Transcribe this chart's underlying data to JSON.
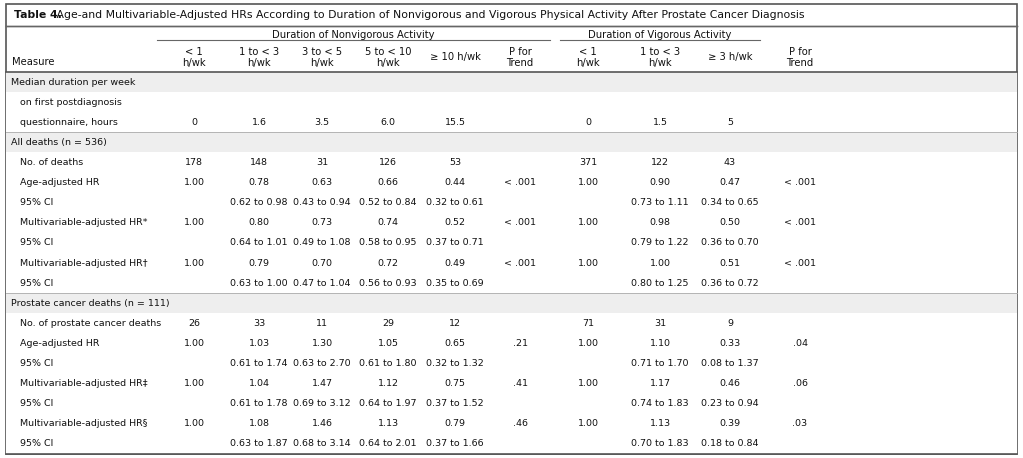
{
  "title_bold": "Table 4.",
  "title_rest": " Age-and Multivariable-Adjusted HRs According to Duration of Nonvigorous and Vigorous Physical Activity After Prostate Cancer Diagnosis",
  "col_group1_label": "Duration of Nonvigorous Activity",
  "col_group2_label": "Duration of Vigorous Activity",
  "subheaders_line1": [
    "< 1",
    "1 to < 3",
    "3 to < 5",
    "5 to < 10",
    "",
    "P for",
    "< 1",
    "1 to < 3",
    "",
    "P for"
  ],
  "subheaders_line2": [
    "h/wk",
    "h/wk",
    "h/wk",
    "h/wk",
    "≥ 10 h/wk",
    "Trend",
    "h/wk",
    "h/wk",
    "≥ 3 h/wk",
    "Trend"
  ],
  "measure_label": "Measure",
  "rows": [
    {
      "label": "Median duration per week",
      "section": true,
      "values": [
        "",
        "",
        "",
        "",
        "",
        "",
        "",
        "",
        "",
        ""
      ]
    },
    {
      "label": "   on first postdiagnosis",
      "section": false,
      "values": [
        "",
        "",
        "",
        "",
        "",
        "",
        "",
        "",
        "",
        ""
      ]
    },
    {
      "label": "   questionnaire, hours",
      "section": false,
      "values": [
        "0",
        "1.6",
        "3.5",
        "6.0",
        "15.5",
        "",
        "0",
        "1.5",
        "5",
        ""
      ]
    },
    {
      "label": "All deaths (n = 536)",
      "section": true,
      "values": [
        "",
        "",
        "",
        "",
        "",
        "",
        "",
        "",
        "",
        ""
      ]
    },
    {
      "label": "   No. of deaths",
      "section": false,
      "values": [
        "178",
        "148",
        "31",
        "126",
        "53",
        "",
        "371",
        "122",
        "43",
        ""
      ]
    },
    {
      "label": "   Age-adjusted HR",
      "section": false,
      "values": [
        "1.00",
        "0.78",
        "0.63",
        "0.66",
        "0.44",
        "< .001",
        "1.00",
        "0.90",
        "0.47",
        "< .001"
      ]
    },
    {
      "label": "   95% CI",
      "section": false,
      "values": [
        "",
        "0.62 to 0.98",
        "0.43 to 0.94",
        "0.52 to 0.84",
        "0.32 to 0.61",
        "",
        "",
        "0.73 to 1.11",
        "0.34 to 0.65",
        ""
      ]
    },
    {
      "label": "   Multivariable-adjusted HR*",
      "section": false,
      "values": [
        "1.00",
        "0.80",
        "0.73",
        "0.74",
        "0.52",
        "< .001",
        "1.00",
        "0.98",
        "0.50",
        "< .001"
      ]
    },
    {
      "label": "   95% CI",
      "section": false,
      "values": [
        "",
        "0.64 to 1.01",
        "0.49 to 1.08",
        "0.58 to 0.95",
        "0.37 to 0.71",
        "",
        "",
        "0.79 to 1.22",
        "0.36 to 0.70",
        ""
      ]
    },
    {
      "label": "   Multivariable-adjusted HR†",
      "section": false,
      "values": [
        "1.00",
        "0.79",
        "0.70",
        "0.72",
        "0.49",
        "< .001",
        "1.00",
        "1.00",
        "0.51",
        "< .001"
      ]
    },
    {
      "label": "   95% CI",
      "section": false,
      "values": [
        "",
        "0.63 to 1.00",
        "0.47 to 1.04",
        "0.56 to 0.93",
        "0.35 to 0.69",
        "",
        "",
        "0.80 to 1.25",
        "0.36 to 0.72",
        ""
      ]
    },
    {
      "label": "Prostate cancer deaths (n = 111)",
      "section": true,
      "values": [
        "",
        "",
        "",
        "",
        "",
        "",
        "",
        "",
        "",
        ""
      ]
    },
    {
      "label": "   No. of prostate cancer deaths",
      "section": false,
      "values": [
        "26",
        "33",
        "11",
        "29",
        "12",
        "",
        "71",
        "31",
        "9",
        ""
      ]
    },
    {
      "label": "   Age-adjusted HR",
      "section": false,
      "values": [
        "1.00",
        "1.03",
        "1.30",
        "1.05",
        "0.65",
        ".21",
        "1.00",
        "1.10",
        "0.33",
        ".04"
      ]
    },
    {
      "label": "   95% CI",
      "section": false,
      "values": [
        "",
        "0.61 to 1.74",
        "0.63 to 2.70",
        "0.61 to 1.80",
        "0.32 to 1.32",
        "",
        "",
        "0.71 to 1.70",
        "0.08 to 1.37",
        ""
      ]
    },
    {
      "label": "   Multivariable-adjusted HR‡",
      "section": false,
      "values": [
        "1.00",
        "1.04",
        "1.47",
        "1.12",
        "0.75",
        ".41",
        "1.00",
        "1.17",
        "0.46",
        ".06"
      ]
    },
    {
      "label": "   95% CI",
      "section": false,
      "values": [
        "",
        "0.61 to 1.78",
        "0.69 to 3.12",
        "0.64 to 1.97",
        "0.37 to 1.52",
        "",
        "",
        "0.74 to 1.83",
        "0.23 to 0.94",
        ""
      ]
    },
    {
      "label": "   Multivariable-adjusted HR§",
      "section": false,
      "values": [
        "1.00",
        "1.08",
        "1.46",
        "1.13",
        "0.79",
        ".46",
        "1.00",
        "1.13",
        "0.39",
        ".03"
      ]
    },
    {
      "label": "   95% CI",
      "section": false,
      "values": [
        "",
        "0.63 to 1.87",
        "0.68 to 3.14",
        "0.64 to 2.01",
        "0.37 to 1.66",
        "",
        "",
        "0.70 to 1.83",
        "0.18 to 0.84",
        ""
      ]
    }
  ],
  "text_color": "#111111",
  "section_bg": "#eeeeee",
  "white_bg": "#ffffff",
  "border_color": "#666666",
  "thin_line_color": "#aaaaaa"
}
